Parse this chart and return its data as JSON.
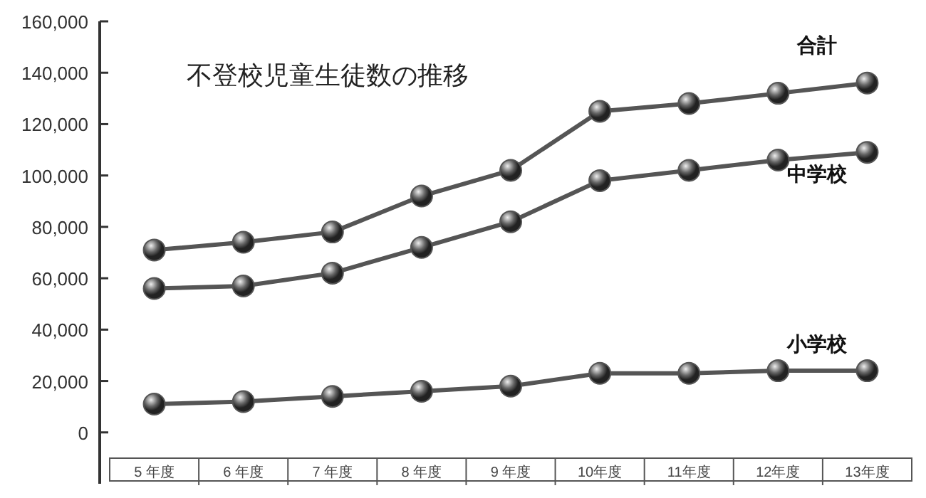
{
  "chart_data": {
    "type": "line",
    "title": "不登校児童生徒数の推移",
    "categories": [
      "5 年度",
      "6 年度",
      "7 年度",
      "8 年度",
      "9 年度",
      "10年度",
      "11年度",
      "12年度",
      "13年度"
    ],
    "series": [
      {
        "name": "合計",
        "color": "#555555",
        "values": [
          71000,
          74000,
          78000,
          92000,
          102000,
          125000,
          128000,
          132000,
          136000
        ]
      },
      {
        "name": "中学校",
        "color": "#555555",
        "values": [
          56000,
          57000,
          62000,
          72000,
          82000,
          98000,
          102000,
          106000,
          109000
        ]
      },
      {
        "name": "小学校",
        "color": "#555555",
        "values": [
          11000,
          12000,
          14000,
          16000,
          18000,
          23000,
          23000,
          24000,
          24000
        ]
      }
    ],
    "ylim": [
      -20000,
      160000
    ],
    "yticks": [
      {
        "value": 0,
        "label": "0"
      },
      {
        "value": 20000,
        "label": "20,000"
      },
      {
        "value": 40000,
        "label": "40,000"
      },
      {
        "value": 60000,
        "label": "60,000"
      },
      {
        "value": 80000,
        "label": "80,000"
      },
      {
        "value": 100000,
        "label": "100,000"
      },
      {
        "value": 120000,
        "label": "120,000"
      },
      {
        "value": 140000,
        "label": "140,000"
      },
      {
        "value": 160000,
        "label": "160,000"
      }
    ],
    "marker": "circle",
    "grid": false,
    "legend": false
  }
}
